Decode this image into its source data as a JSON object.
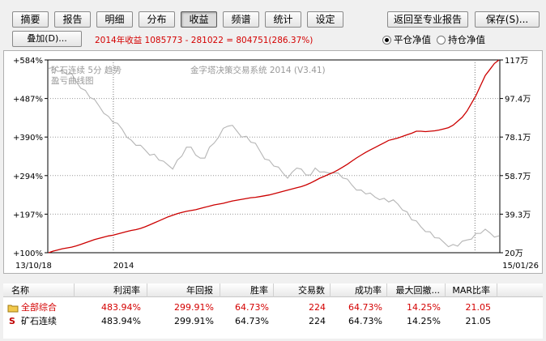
{
  "toolbar": {
    "tabs": [
      "摘要",
      "报告",
      "明细",
      "分布",
      "收益",
      "频谱",
      "统计",
      "设定"
    ],
    "active_tab": "收益",
    "return_button": "返回至专业报告",
    "save_button": "保存(S)..."
  },
  "subbar": {
    "overlay_button": "叠加(D)...",
    "summary": "2014年收益 1085773 - 281022 = 804751(286.37%)",
    "radio_closed": "平仓净值",
    "radio_open": "持仓净值",
    "selected_radio": "平仓净值"
  },
  "watermark": {
    "system": "金字塔决策交易系统 2014 (V3.41)",
    "contract": "矿石连续 5分 趋势",
    "note": "盈亏曲线图"
  },
  "chart_data": {
    "type": "line",
    "x_start": "13/10/18",
    "x_end": "15/01/26",
    "x_mid_label": "2014",
    "left_ticks": [
      "+584%",
      "+487%",
      "+390%",
      "+294%",
      "+197%",
      "+100%"
    ],
    "right_ticks": [
      "117万",
      "97.4万",
      "78.1万",
      "58.7万",
      "39.3万",
      "20万"
    ],
    "ylim": [
      100,
      584
    ],
    "series": [
      {
        "color": "#cc0000",
        "values": [
          100,
          104,
          107,
          110,
          112,
          114,
          117,
          121,
          125,
          129,
          133,
          136,
          139,
          142,
          144,
          147,
          150,
          153,
          156,
          158,
          161,
          165,
          170,
          175,
          180,
          185,
          190,
          194,
          198,
          201,
          204,
          206,
          208,
          211,
          214,
          217,
          220,
          222,
          224,
          227,
          230,
          232,
          234,
          236,
          238,
          239,
          241,
          243,
          245,
          248,
          251,
          254,
          257,
          260,
          263,
          266,
          270,
          275,
          281,
          287,
          292,
          297,
          302,
          308,
          315,
          322,
          330,
          338,
          345,
          352,
          358,
          364,
          370,
          376,
          382,
          385,
          388,
          392,
          396,
          400,
          405,
          405,
          404,
          405,
          406,
          408,
          411,
          414,
          420,
          430,
          440,
          455,
          475,
          495,
          520,
          545,
          560,
          575,
          584
        ]
      },
      {
        "color": "#b5b5b5",
        "values": [
          558,
          565,
          560,
          555,
          550,
          545,
          530,
          518,
          505,
          492,
          480,
          468,
          455,
          440,
          430,
          420,
          410,
          395,
          380,
          372,
          365,
          358,
          350,
          345,
          335,
          325,
          320,
          315,
          330,
          345,
          360,
          365,
          350,
          335,
          340,
          360,
          375,
          395,
          410,
          420,
          415,
          405,
          395,
          390,
          380,
          370,
          355,
          340,
          330,
          320,
          310,
          300,
          292,
          300,
          315,
          305,
          295,
          300,
          310,
          305,
          298,
          300,
          305,
          298,
          290,
          280,
          270,
          262,
          255,
          250,
          245,
          240,
          238,
          234,
          230,
          228,
          222,
          212,
          200,
          185,
          175,
          165,
          158,
          150,
          140,
          132,
          126,
          120,
          118,
          119,
          124,
          132,
          139,
          146,
          151,
          154,
          150,
          144,
          140
        ]
      }
    ]
  },
  "table": {
    "headers": [
      "名称",
      "利润率",
      "年回报",
      "胜率",
      "交易数",
      "成功率",
      "最大回撤...",
      "MAR比率"
    ],
    "rows": [
      {
        "icon": "folder-icon",
        "name": "全部综合",
        "profit": "483.94%",
        "annual": "299.91%",
        "win": "64.73%",
        "trades": "224",
        "success": "64.73%",
        "drawdown": "14.25%",
        "mar": "21.05",
        "highlight": true
      },
      {
        "icon": "strategy-s-icon",
        "name": "矿石连续",
        "profit": "483.94%",
        "annual": "299.91%",
        "win": "64.73%",
        "trades": "224",
        "success": "64.73%",
        "drawdown": "14.25%",
        "mar": "21.05",
        "highlight": false
      }
    ]
  }
}
